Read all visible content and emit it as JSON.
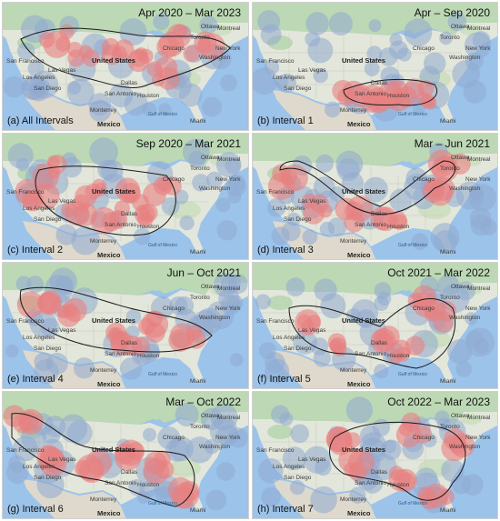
{
  "map_labels": {
    "united_states": "United States",
    "mexico": "Mexico",
    "gulf": "Gulf of Mexico",
    "las_vegas": "Las Vegas",
    "los_angeles": "Los Angeles",
    "san_diego": "San Diego",
    "san_francisco": "San Francisco",
    "dallas": "Dallas",
    "houston": "Houston",
    "san_antonio": "San Antonio",
    "chicago": "Chicago",
    "toronto": "Toronto",
    "ottawa": "Ottawa",
    "montreal": "Montreal",
    "new_york": "New York",
    "washington": "Washington",
    "monterrey": "Monterrey",
    "miami": "Miami"
  },
  "colors": {
    "hot_cluster": "#e88080",
    "cool_cluster": "#8fa9d0",
    "contour": "#1a1a1a",
    "ocean": "#9cc3ea",
    "land": "#e3e6da",
    "forest": "#bcd8b4"
  },
  "panels": [
    {
      "label": "(a) All Intervals",
      "date": "Apr 2020 – Mar 2023"
    },
    {
      "label": "(b) Interval 1",
      "date": "Apr – Sep 2020"
    },
    {
      "label": "(c) Interval 2",
      "date": "Sep 2020 – Mar 2021"
    },
    {
      "label": "(d) Interval 3",
      "date": "Mar – Jun 2021"
    },
    {
      "label": "(e) Interval 4",
      "date": "Jun – Oct 2021"
    },
    {
      "label": "(f) Interval 5",
      "date": "Oct 2021 – Mar 2022"
    },
    {
      "label": "(g) Interval 6",
      "date": "Mar – Oct 2022"
    },
    {
      "label": "(h) Interval 7",
      "date": "Oct 2022 – Mar 2023"
    }
  ]
}
